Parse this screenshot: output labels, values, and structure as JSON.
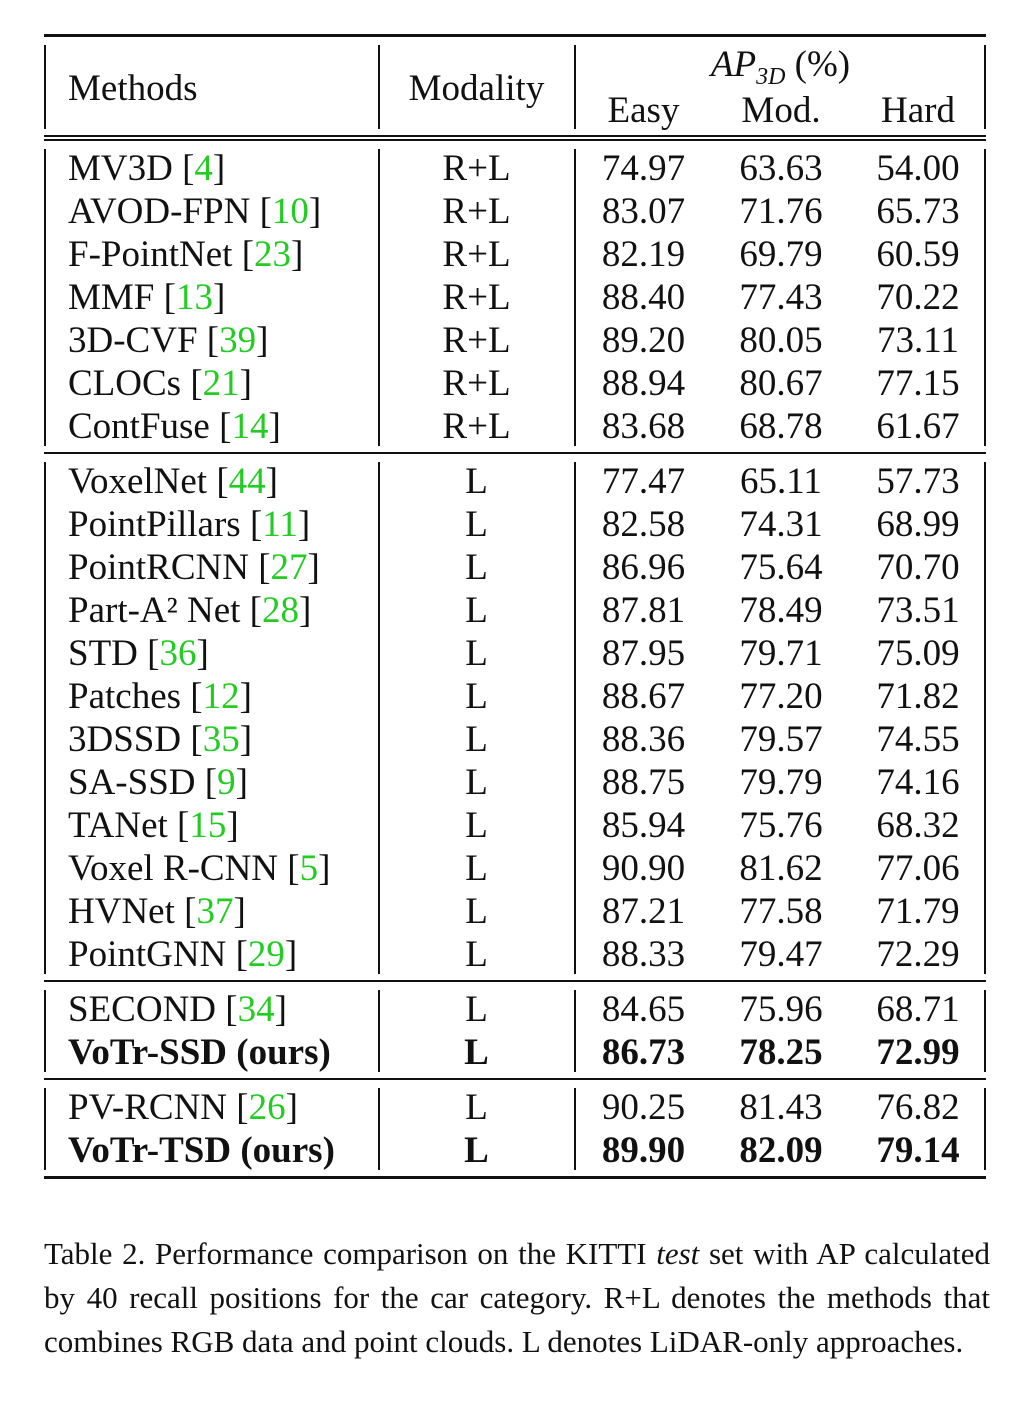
{
  "header": {
    "methods": "Methods",
    "modality": "Modality",
    "ap_main": "AP",
    "ap_sub": "3D",
    "ap_unit": "(%)",
    "easy": "Easy",
    "mod": "Mod.",
    "hard": "Hard"
  },
  "groups": [
    {
      "rows": [
        {
          "name": "MV3D",
          "cite": "4",
          "modality": "R+L",
          "easy": "74.97",
          "mod": "63.63",
          "hard": "54.00"
        },
        {
          "name": "AVOD-FPN",
          "cite": "10",
          "modality": "R+L",
          "easy": "83.07",
          "mod": "71.76",
          "hard": "65.73"
        },
        {
          "name": "F-PointNet",
          "cite": "23",
          "modality": "R+L",
          "easy": "82.19",
          "mod": "69.79",
          "hard": "60.59"
        },
        {
          "name": "MMF",
          "cite": "13",
          "modality": "R+L",
          "easy": "88.40",
          "mod": "77.43",
          "hard": "70.22"
        },
        {
          "name": "3D-CVF",
          "cite": "39",
          "modality": "R+L",
          "easy": "89.20",
          "mod": "80.05",
          "hard": "73.11"
        },
        {
          "name": "CLOCs",
          "cite": "21",
          "modality": "R+L",
          "easy": "88.94",
          "mod": "80.67",
          "hard": "77.15"
        },
        {
          "name": "ContFuse",
          "cite": "14",
          "modality": "R+L",
          "easy": "83.68",
          "mod": "68.78",
          "hard": "61.67"
        }
      ]
    },
    {
      "rows": [
        {
          "name": "VoxelNet",
          "cite": "44",
          "modality": "L",
          "easy": "77.47",
          "mod": "65.11",
          "hard": "57.73"
        },
        {
          "name": "PointPillars",
          "cite": "11",
          "modality": "L",
          "easy": "82.58",
          "mod": "74.31",
          "hard": "68.99"
        },
        {
          "name": "PointRCNN",
          "cite": "27",
          "modality": "L",
          "easy": "86.96",
          "mod": "75.64",
          "hard": "70.70"
        },
        {
          "name": "Part-A² Net",
          "cite": "28",
          "modality": "L",
          "easy": "87.81",
          "mod": "78.49",
          "hard": "73.51"
        },
        {
          "name": "STD",
          "cite": "36",
          "modality": "L",
          "easy": "87.95",
          "mod": "79.71",
          "hard": "75.09"
        },
        {
          "name": "Patches",
          "cite": "12",
          "modality": "L",
          "easy": "88.67",
          "mod": "77.20",
          "hard": "71.82"
        },
        {
          "name": "3DSSD",
          "cite": "35",
          "modality": "L",
          "easy": "88.36",
          "mod": "79.57",
          "hard": "74.55"
        },
        {
          "name": "SA-SSD",
          "cite": "9",
          "modality": "L",
          "easy": "88.75",
          "mod": "79.79",
          "hard": "74.16"
        },
        {
          "name": "TANet",
          "cite": "15",
          "modality": "L",
          "easy": "85.94",
          "mod": "75.76",
          "hard": "68.32"
        },
        {
          "name": "Voxel R-CNN",
          "cite": "5",
          "modality": "L",
          "easy": "90.90",
          "mod": "81.62",
          "hard": "77.06"
        },
        {
          "name": "HVNet",
          "cite": "37",
          "modality": "L",
          "easy": "87.21",
          "mod": "77.58",
          "hard": "71.79"
        },
        {
          "name": "PointGNN",
          "cite": "29",
          "modality": "L",
          "easy": "88.33",
          "mod": "79.47",
          "hard": "72.29"
        }
      ]
    },
    {
      "rows": [
        {
          "name": "SECOND",
          "cite": "34",
          "modality": "L",
          "easy": "84.65",
          "mod": "75.96",
          "hard": "68.71"
        },
        {
          "name": "VoTr-SSD (ours)",
          "cite": "",
          "modality": "L",
          "easy": "86.73",
          "mod": "78.25",
          "hard": "72.99",
          "bold": true
        }
      ]
    },
    {
      "rows": [
        {
          "name": "PV-RCNN",
          "cite": "26",
          "modality": "L",
          "easy": "90.25",
          "mod": "81.43",
          "hard": "76.82"
        },
        {
          "name": "VoTr-TSD (ours)",
          "cite": "",
          "modality": "L",
          "easy": "89.90",
          "mod": "82.09",
          "hard": "79.14",
          "bold": true
        }
      ]
    }
  ],
  "caption": {
    "prefix": "Table 2. Performance comparison on the KITTI ",
    "italic": "test",
    "suffix": " set with AP calculated by 40 recall positions for the car category. R+L denotes the methods that combines RGB data and point clouds. L denotes LiDAR-only approaches."
  },
  "colors": {
    "citation": "#22cc22",
    "text": "#111111"
  }
}
